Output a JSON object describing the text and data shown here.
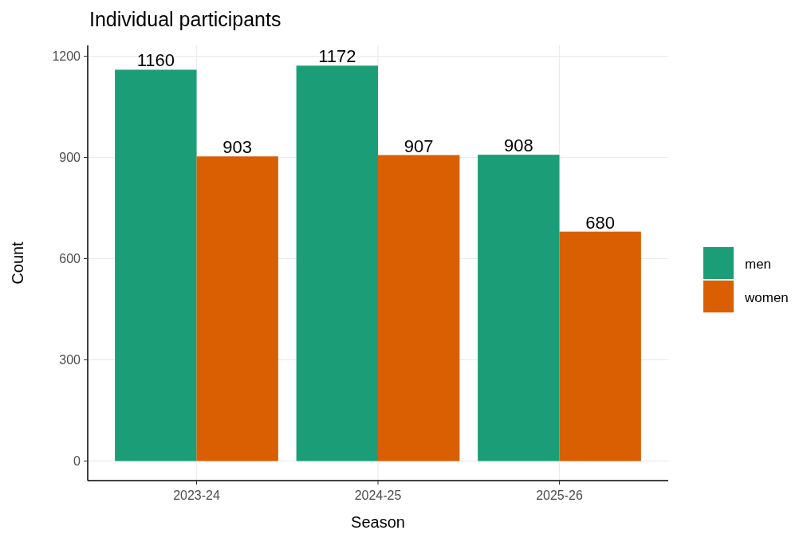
{
  "chart_data": {
    "type": "bar",
    "title": "Individual participants",
    "xlabel": "Season",
    "ylabel": "Count",
    "categories": [
      "2023-24",
      "2024-25",
      "2025-26"
    ],
    "series": [
      {
        "name": "men",
        "color": "#1b9e77",
        "values": [
          1160,
          1172,
          908
        ]
      },
      {
        "name": "women",
        "color": "#d95f02",
        "values": [
          903,
          907,
          680
        ]
      }
    ],
    "ylim": [
      -58,
      1232
    ],
    "yticks": [
      0,
      300,
      600,
      900,
      1200
    ],
    "grid": true,
    "legend": "right",
    "data_labels": true
  }
}
